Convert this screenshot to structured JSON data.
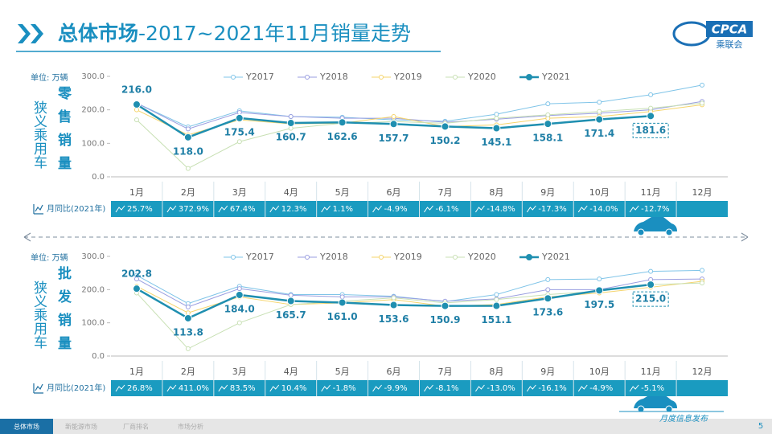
{
  "header": {
    "title_main": "总体市场",
    "title_rest": "-2017~2021年11月销量走势"
  },
  "logo": {
    "en": "CPCA",
    "cn": "乘联会"
  },
  "chart_data": [
    {
      "type": "line",
      "segment": "狭义乘用车",
      "title": "零售销量",
      "unit": "单位:  万辆",
      "categories": [
        "1月",
        "2月",
        "3月",
        "4月",
        "5月",
        "6月",
        "7月",
        "8月",
        "9月",
        "10月",
        "11月",
        "12月"
      ],
      "ylim": [
        0,
        300
      ],
      "yticks": [
        {
          "value": 0,
          "label": "0.0"
        },
        {
          "value": 100,
          "label": "100.0"
        },
        {
          "value": 200,
          "label": "200.0"
        },
        {
          "value": 300,
          "label": "300.0"
        }
      ],
      "series": [
        {
          "name": "Y2017",
          "color": "#7fc4e8",
          "values": [
            220,
            149,
            197,
            180,
            178,
            170,
            166,
            187,
            218,
            223,
            245,
            274
          ]
        },
        {
          "name": "Y2018",
          "color": "#9a9ee0",
          "values": [
            220,
            143,
            192,
            180,
            175,
            175,
            163,
            172,
            183,
            190,
            200,
            225
          ]
        },
        {
          "name": "Y2019",
          "color": "#f5d46b",
          "values": [
            200,
            125,
            170,
            158,
            160,
            180,
            150,
            155,
            175,
            180,
            195,
            215
          ]
        },
        {
          "name": "Y2020",
          "color": "#c8e0b4",
          "values": [
            170,
            25,
            105,
            145,
            160,
            165,
            160,
            175,
            185,
            195,
            205,
            220
          ]
        },
        {
          "name": "Y2021",
          "color": "#1f8fb0",
          "values": [
            216.0,
            118.0,
            175.4,
            160.7,
            162.6,
            157.7,
            150.2,
            145.1,
            158.1,
            171.4,
            181.6,
            null
          ],
          "value_labels": [
            "216.0",
            "118.0",
            "175.4",
            "160.7",
            "162.6",
            "157.7",
            "150.2",
            "145.1",
            "158.1",
            "171.4",
            "181.6",
            null
          ]
        }
      ],
      "yoy_label": "月同比(2021年)",
      "yoy": [
        "25.7%",
        "372.9%",
        "67.4%",
        "12.3%",
        "1.1%",
        "-4.9%",
        "-6.1%",
        "-14.8%",
        "-17.3%",
        "-14.0%",
        "-12.7%",
        null
      ]
    },
    {
      "type": "line",
      "segment": "狭义乘用车",
      "title": "批发销量",
      "unit": "单位:  万辆",
      "categories": [
        "1月",
        "2月",
        "3月",
        "4月",
        "5月",
        "6月",
        "7月",
        "8月",
        "9月",
        "10月",
        "11月",
        "12月"
      ],
      "ylim": [
        0,
        300
      ],
      "yticks": [
        {
          "value": 0,
          "label": "0.0"
        },
        {
          "value": 100,
          "label": "100.0"
        },
        {
          "value": 200,
          "label": "200.0"
        },
        {
          "value": 300,
          "label": "300.0"
        }
      ],
      "series": [
        {
          "name": "Y2017",
          "color": "#7fc4e8",
          "values": [
            243,
            158,
            210,
            185,
            185,
            180,
            164,
            185,
            230,
            232,
            255,
            258
          ]
        },
        {
          "name": "Y2018",
          "color": "#9a9ee0",
          "values": [
            232,
            148,
            203,
            183,
            178,
            178,
            165,
            172,
            200,
            200,
            230,
            232
          ]
        },
        {
          "name": "Y2019",
          "color": "#f5d46b",
          "values": [
            210,
            130,
            178,
            155,
            160,
            170,
            150,
            155,
            178,
            190,
            207,
            225
          ]
        },
        {
          "name": "Y2020",
          "color": "#c8e0b4",
          "values": [
            190,
            22,
            100,
            155,
            165,
            175,
            160,
            170,
            185,
            195,
            215,
            220
          ]
        },
        {
          "name": "Y2021",
          "color": "#1f8fb0",
          "values": [
            202.8,
            113.8,
            184.0,
            165.7,
            161.0,
            153.6,
            150.9,
            151.1,
            173.6,
            197.5,
            215.0,
            null
          ],
          "value_labels": [
            "202.8",
            "113.8",
            "184.0",
            "165.7",
            "161.0",
            "153.6",
            "150.9",
            "151.1",
            "173.6",
            "197.5",
            "215.0",
            null
          ]
        }
      ],
      "yoy_label": "月同比(2021年)",
      "yoy": [
        "26.8%",
        "411.0%",
        "83.5%",
        "10.4%",
        "-1.8%",
        "-9.9%",
        "-8.1%",
        "-13.0%",
        "-16.1%",
        "-4.9%",
        "-5.1%",
        null
      ]
    }
  ],
  "footer": {
    "tabs": [
      "总体市场",
      "新能源市场",
      "厂商排名",
      "市场分析"
    ],
    "note": "月度信息发布",
    "page": "5"
  }
}
